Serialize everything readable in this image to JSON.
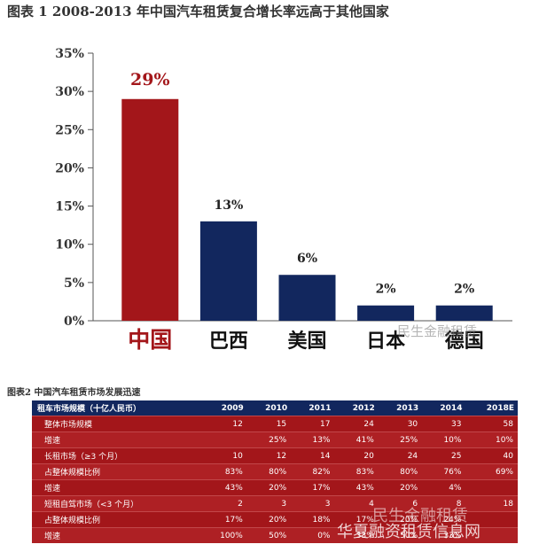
{
  "figure1": {
    "title": "图表 1  2008-2013 年中国汽车租赁复合增长率远高于其他国家"
  },
  "chart_data": [
    {
      "type": "bar",
      "title": "图表 1  2008-2013 年中国汽车租赁复合增长率远高于其他国家",
      "categories": [
        "中国",
        "巴西",
        "美国",
        "日本",
        "德国"
      ],
      "values": [
        29,
        13,
        6,
        2,
        2
      ],
      "data_labels": [
        "29%",
        "13%",
        "6%",
        "2%",
        "2%"
      ],
      "ylim": [
        0,
        35
      ],
      "yticks": [
        "0%",
        "5%",
        "10%",
        "15%",
        "20%",
        "25%",
        "30%",
        "35%"
      ],
      "colors": [
        "#a3161a",
        "#12275e",
        "#12275e",
        "#12275e",
        "#12275e"
      ],
      "highlight_color": "#a3161a",
      "grid": false,
      "legend": "none"
    },
    {
      "type": "table",
      "title": "图表2  中国汽车租赁市场发展迅速",
      "columns": [
        "租车市场规模（十亿人民币）",
        "2009",
        "2010",
        "2011",
        "2012",
        "2013",
        "2014",
        "2018E"
      ],
      "rows": [
        [
          "整体市场规模",
          "12",
          "15",
          "17",
          "24",
          "30",
          "33",
          "58"
        ],
        [
          "增速",
          "",
          "25%",
          "13%",
          "41%",
          "25%",
          "10%",
          "10%"
        ],
        [
          "长租市场（≥3 个月）",
          "10",
          "12",
          "14",
          "20",
          "24",
          "25",
          "40"
        ],
        [
          "占整体规模比例",
          "83%",
          "80%",
          "82%",
          "83%",
          "80%",
          "76%",
          "69%"
        ],
        [
          "增速",
          "43%",
          "20%",
          "17%",
          "43%",
          "20%",
          "4%",
          ""
        ],
        [
          "短租自驾市场（<3 个月）",
          "2",
          "3",
          "3",
          "4",
          "6",
          "8",
          "18"
        ],
        [
          "占整体规模比例",
          "17%",
          "20%",
          "18%",
          "17%",
          "20%",
          "24%",
          ""
        ],
        [
          "增速",
          "100%",
          "50%",
          "0%",
          "33%",
          "50%",
          "33%",
          ""
        ]
      ]
    }
  ],
  "figure2": {
    "title": "图表2  中国汽车租赁市场发展迅速"
  },
  "watermarks": {
    "w1": "民生金融租赁",
    "w2": "华夏融资租赁信息网",
    "w3": "民生金融租赁"
  }
}
